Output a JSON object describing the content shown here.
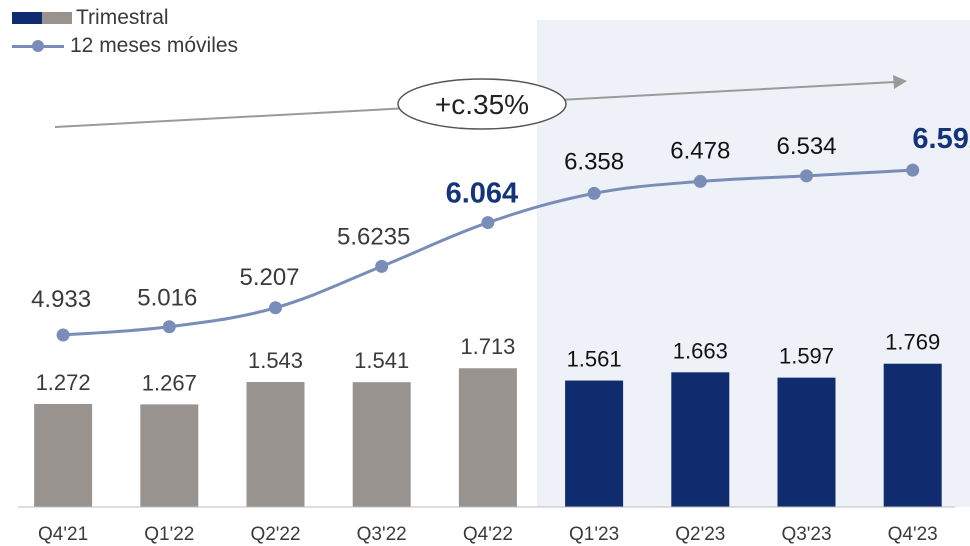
{
  "legend": {
    "quarterly": "Trimestral",
    "rolling": "12 meses móviles"
  },
  "annotation": {
    "growth_label": "+c.35%"
  },
  "colors": {
    "bar_past": "#999390",
    "bar_current": "#0f2d6e",
    "line": "#7a8db8",
    "highlight_text": "#13337a",
    "shade": "#eef2f8",
    "arrow": "#9a9a9a"
  },
  "chart_data": {
    "type": "bar+line",
    "categories": [
      "Q4'21",
      "Q1'22",
      "Q2'22",
      "Q3'22",
      "Q4'22",
      "Q1'23",
      "Q2'23",
      "Q3'23",
      "Q4'23"
    ],
    "series": [
      {
        "name": "Trimestral",
        "type": "bar",
        "values": [
          1.272,
          1.267,
          1.543,
          1.541,
          1.713,
          1.561,
          1.663,
          1.597,
          1.769
        ],
        "labels": [
          "1.272",
          "1.267",
          "1.543",
          "1.541",
          "1.713",
          "1.561",
          "1.663",
          "1.597",
          "1.769"
        ]
      },
      {
        "name": "12 meses móviles",
        "type": "line",
        "values": [
          4.933,
          5.016,
          5.207,
          5.6235,
          6.064,
          6.358,
          6.478,
          6.534,
          6.592
        ],
        "labels": [
          "4.933",
          "5.016",
          "5.207",
          "5.6235",
          "6.064",
          "6.358",
          "6.478",
          "6.534",
          "6.592"
        ],
        "highlighted": [
          "Q4'22",
          "Q4'23"
        ]
      }
    ],
    "shaded_categories": [
      "Q1'23",
      "Q2'23",
      "Q3'23",
      "Q4'23"
    ],
    "grid": false
  }
}
